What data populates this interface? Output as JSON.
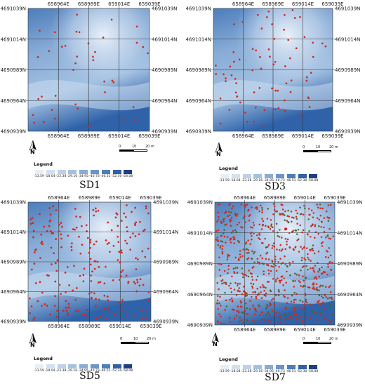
{
  "panels": [
    {
      "id": "sd1",
      "title": "SD1",
      "sample_density": "sparse"
    },
    {
      "id": "sd3",
      "title": "SD3",
      "sample_density": "sparse"
    },
    {
      "id": "sd5",
      "title": "SD5",
      "sample_density": "medium"
    },
    {
      "id": "sd7",
      "title": "SD7",
      "sample_density": "dense"
    }
  ],
  "axis_labels": {
    "top_eastings": [
      "658964E",
      "658989E",
      "659014E",
      "659039E"
    ],
    "bottom_eastings": [
      "658964E",
      "658989E",
      "659014E",
      "659039E"
    ],
    "left_northings": [
      "4691039N",
      "4691014N",
      "4690989N",
      "4690964N",
      "4690939N"
    ],
    "right_northings": [
      "4691039N",
      "4691014N",
      "4690989N",
      "4690964N",
      "4690939N"
    ]
  },
  "legend": {
    "title": "Legend",
    "values": [
      "-13.59",
      "-18.04",
      "-23.38",
      "-29.16",
      "-34.95",
      "-40.73",
      "-46.51",
      "-52.30",
      "-58.08"
    ],
    "colors": [
      "#e6eef8",
      "#d2e0f1",
      "#bcd1ea",
      "#a4c1e2",
      "#88acd6",
      "#6a95ca",
      "#4d7dbc",
      "#2f62a8",
      "#1d3f86"
    ]
  },
  "scale_bar": {
    "labels": [
      "0",
      "10",
      "20 m"
    ]
  },
  "north_arrow": {
    "label": "N"
  },
  "colors": {
    "sample_point": "#cc2a1e",
    "grid_line": "#333333",
    "map_light": "#e8eff8",
    "map_dark": "#2a5aa5"
  }
}
